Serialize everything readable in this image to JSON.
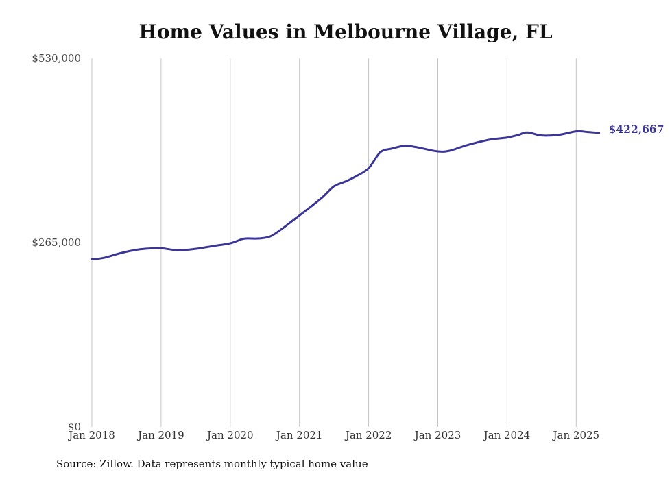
{
  "chart_data": {
    "type": "line",
    "title": "Home Values in Melbourne Village, FL",
    "source": "Source: Zillow. Data represents monthly typical home value",
    "ylim": [
      0,
      530000
    ],
    "yticks": [
      {
        "value": 0,
        "label": "$0"
      },
      {
        "value": 265000,
        "label": "$265,000"
      },
      {
        "value": 530000,
        "label": "$530,000"
      }
    ],
    "xticks": [
      {
        "year": 2018,
        "label": "Jan 2018"
      },
      {
        "year": 2019,
        "label": "Jan 2019"
      },
      {
        "year": 2020,
        "label": "Jan 2020"
      },
      {
        "year": 2021,
        "label": "Jan 2021"
      },
      {
        "year": 2022,
        "label": "Jan 2022"
      },
      {
        "year": 2023,
        "label": "Jan 2023"
      },
      {
        "year": 2024,
        "label": "Jan 2024"
      },
      {
        "year": 2025,
        "label": "Jan 2025"
      }
    ],
    "grid": {
      "vertical": true,
      "horizontal": false
    },
    "line_color": "#3b3596",
    "end_label": "$422,667",
    "series": [
      {
        "x": [
          2018.0,
          2018.17,
          2018.42,
          2018.67,
          2018.92,
          2019.0,
          2019.25,
          2019.5,
          2019.75,
          2020.0,
          2020.17,
          2020.25,
          2020.42,
          2020.58,
          2020.75,
          2020.92,
          2021.0,
          2021.17,
          2021.33,
          2021.5,
          2021.67,
          2021.83,
          2022.0,
          2022.17,
          2022.33,
          2022.5,
          2022.58,
          2022.75,
          2023.0,
          2023.17,
          2023.42,
          2023.75,
          2024.0,
          2024.17,
          2024.25,
          2024.33,
          2024.5,
          2024.75,
          2025.0,
          2025.17,
          2025.33
        ],
        "y": [
          241000,
          243000,
          250000,
          255000,
          257000,
          257000,
          254000,
          256000,
          260000,
          264000,
          270000,
          271000,
          271000,
          274000,
          285000,
          298000,
          304000,
          317000,
          330000,
          346000,
          353000,
          361000,
          372000,
          395000,
          400000,
          404000,
          404000,
          401000,
          396000,
          397000,
          405000,
          413000,
          416000,
          420000,
          423000,
          423000,
          419000,
          420000,
          425000,
          424000,
          422667
        ]
      }
    ]
  }
}
